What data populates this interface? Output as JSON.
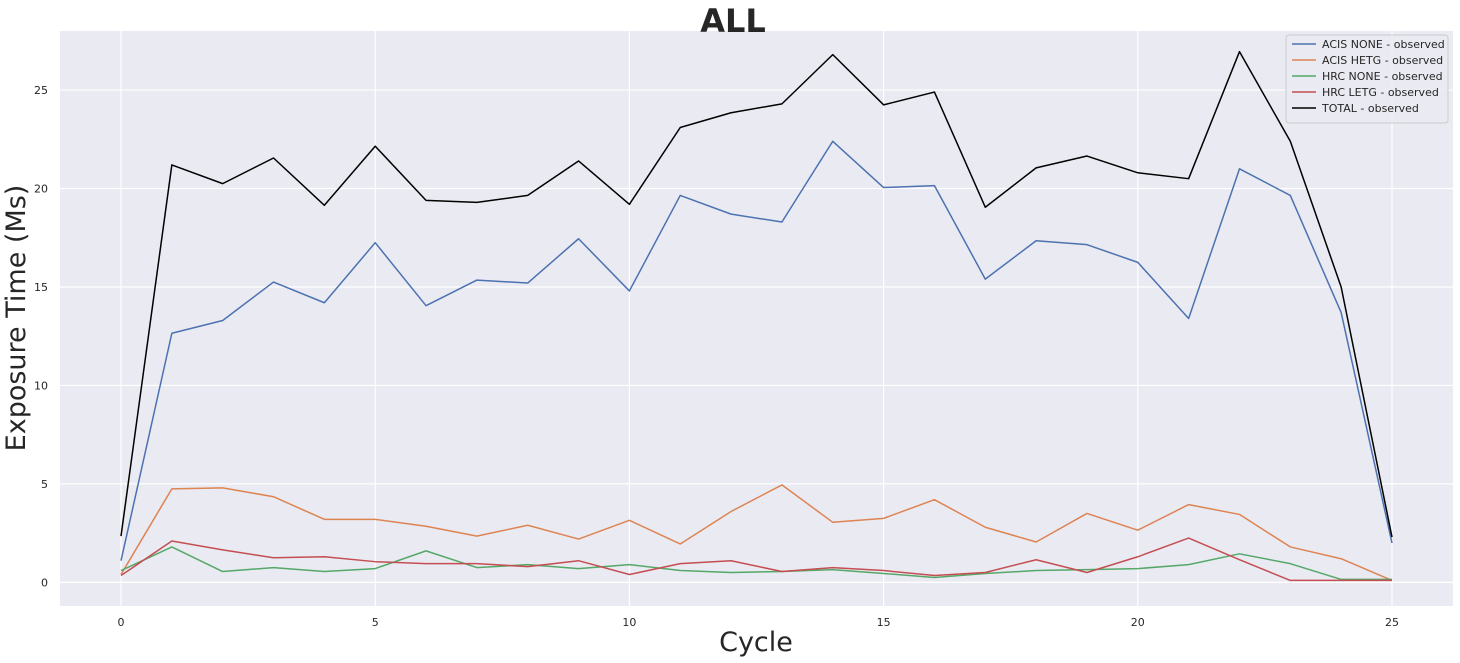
{
  "chart_data": {
    "type": "line",
    "title": "ALL",
    "xlabel": "Cycle",
    "ylabel": "Exposure Time (Ms)",
    "xlim": [
      -1.2,
      26.2
    ],
    "ylim": [
      -1.2,
      28.0
    ],
    "xticks": [
      0,
      5,
      10,
      15,
      20,
      25
    ],
    "yticks": [
      0,
      5,
      10,
      15,
      20,
      25
    ],
    "grid": true,
    "legend_position": "top-right",
    "x": [
      0,
      1,
      2,
      3,
      4,
      5,
      6,
      7,
      8,
      9,
      10,
      11,
      12,
      13,
      14,
      15,
      16,
      17,
      18,
      19,
      20,
      21,
      22,
      23,
      24,
      25
    ],
    "series": [
      {
        "name": "ACIS NONE - observed",
        "color": "#4c72b0",
        "values": [
          1.1,
          12.65,
          13.3,
          15.25,
          14.2,
          17.25,
          14.05,
          15.35,
          15.2,
          17.45,
          14.8,
          19.65,
          18.7,
          18.3,
          22.4,
          20.05,
          20.15,
          15.4,
          17.35,
          17.15,
          16.25,
          13.4,
          21.0,
          19.65,
          13.7,
          2.0
        ]
      },
      {
        "name": "ACIS HETG - observed",
        "color": "#dd8452",
        "values": [
          0.4,
          4.75,
          4.8,
          4.35,
          3.2,
          3.2,
          2.85,
          2.35,
          2.9,
          2.2,
          3.15,
          1.95,
          3.6,
          4.95,
          3.05,
          3.25,
          4.2,
          2.8,
          2.05,
          3.5,
          2.65,
          3.95,
          3.45,
          1.8,
          1.2,
          0.1
        ]
      },
      {
        "name": "HRC NONE - observed",
        "color": "#55a868",
        "values": [
          0.6,
          1.8,
          0.55,
          0.75,
          0.55,
          0.7,
          1.6,
          0.75,
          0.9,
          0.7,
          0.9,
          0.6,
          0.5,
          0.55,
          0.65,
          0.45,
          0.25,
          0.45,
          0.6,
          0.65,
          0.7,
          0.9,
          1.45,
          0.95,
          0.15,
          0.15
        ]
      },
      {
        "name": "HRC LETG - observed",
        "color": "#c44e52",
        "values": [
          0.35,
          2.1,
          1.65,
          1.25,
          1.3,
          1.05,
          0.95,
          0.95,
          0.8,
          1.1,
          0.4,
          0.95,
          1.1,
          0.55,
          0.75,
          0.6,
          0.35,
          0.5,
          1.15,
          0.5,
          1.3,
          2.25,
          1.15,
          0.1,
          0.1,
          0.1
        ]
      },
      {
        "name": "TOTAL - observed",
        "color": "#000000",
        "values": [
          2.35,
          21.2,
          20.25,
          21.55,
          19.15,
          22.15,
          19.4,
          19.3,
          19.65,
          21.4,
          19.2,
          23.1,
          23.85,
          24.3,
          26.8,
          24.25,
          24.9,
          19.05,
          21.05,
          21.65,
          20.8,
          20.5,
          26.95,
          22.4,
          15.0,
          2.3
        ]
      }
    ]
  }
}
